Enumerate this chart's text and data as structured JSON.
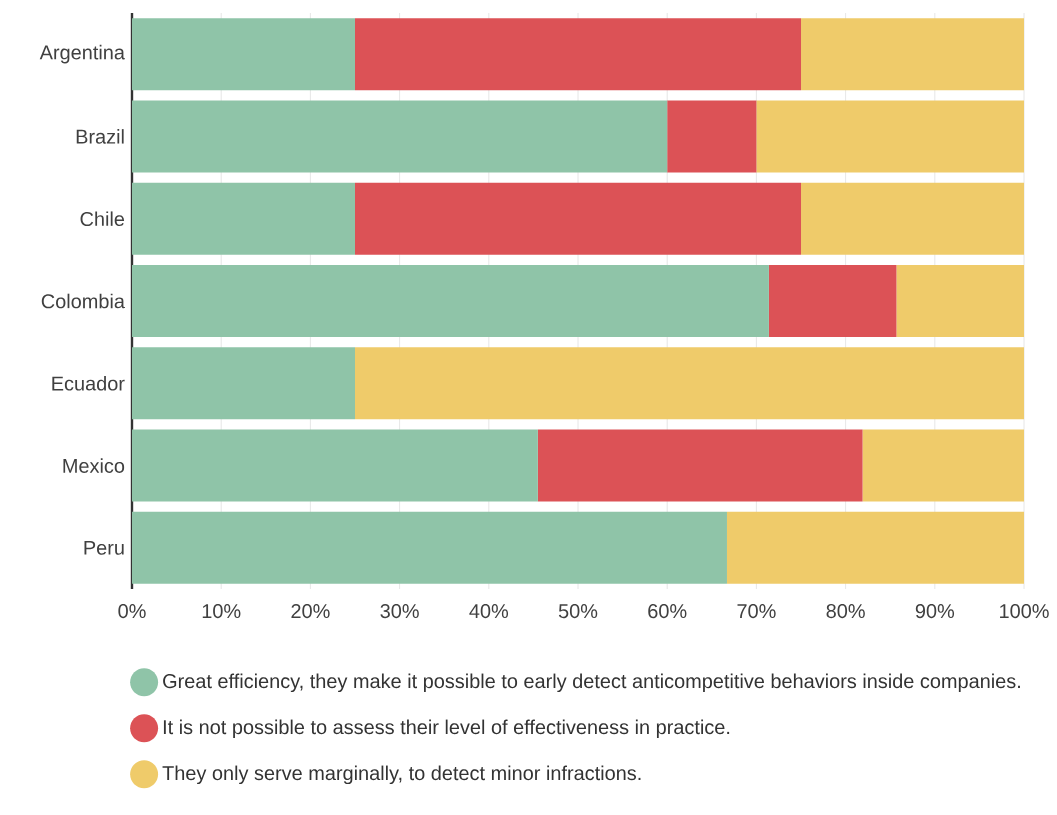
{
  "chart_data": {
    "type": "bar",
    "orientation": "horizontal",
    "stacked": true,
    "categories": [
      "Argentina",
      "Brazil",
      "Chile",
      "Colombia",
      "Ecuador",
      "Mexico",
      "Peru"
    ],
    "series": [
      {
        "name": "Great efficiency, they make it possible to early detect anticompetitive behaviors inside companies.",
        "color": "#8fc4a8",
        "values": [
          25,
          60,
          25,
          71.4,
          25,
          45.5,
          66.7
        ]
      },
      {
        "name": "It is not possible to assess their level of effectiveness in practice.",
        "color": "#dc5256",
        "values": [
          50,
          10,
          50,
          14.3,
          0,
          36.4,
          0
        ]
      },
      {
        "name": "They only serve marginally, to detect minor infractions.",
        "color": "#efcb6a",
        "values": [
          25,
          30,
          25,
          14.3,
          75,
          18.2,
          33.3
        ]
      }
    ],
    "xlim": [
      0,
      100
    ],
    "xticks": [
      {
        "value": 0,
        "label": "0%"
      },
      {
        "value": 10,
        "label": "10%"
      },
      {
        "value": 20,
        "label": "20%"
      },
      {
        "value": 30,
        "label": "30%"
      },
      {
        "value": 40,
        "label": "40%"
      },
      {
        "value": 50,
        "label": "50%"
      },
      {
        "value": 60,
        "label": "60%"
      },
      {
        "value": 70,
        "label": "70%"
      },
      {
        "value": 80,
        "label": "80%"
      },
      {
        "value": 90,
        "label": "90%"
      },
      {
        "value": 100,
        "label": "100%"
      }
    ],
    "grid": "x",
    "legend": "bottom"
  }
}
